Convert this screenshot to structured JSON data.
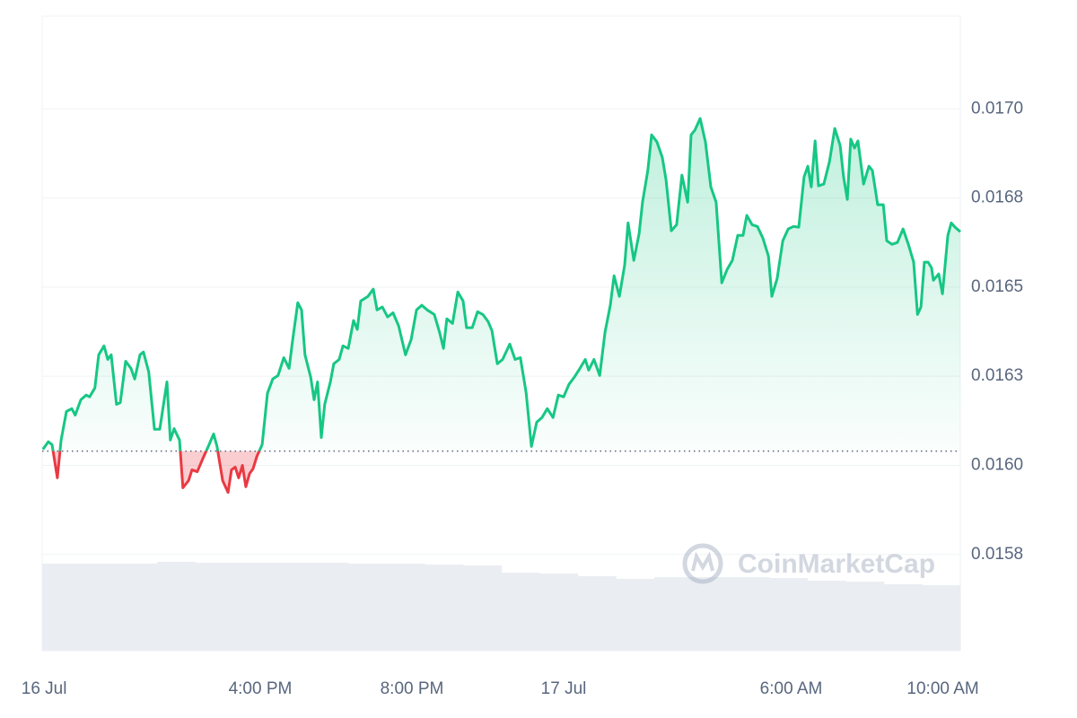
{
  "chart_data": {
    "type": "line",
    "watermark": "CoinMarketCap",
    "baseline": 0.01604,
    "color_up": "#16c784",
    "color_down": "#ea3943",
    "x": [
      10.27,
      10.41,
      10.51,
      10.65,
      10.75,
      10.89,
      11.03,
      11.12,
      11.27,
      11.41,
      11.5,
      11.64,
      11.74,
      11.88,
      11.98,
      12.07,
      12.21,
      12.31,
      12.45,
      12.59,
      12.69,
      12.83,
      12.92,
      13.06,
      13.21,
      13.35,
      13.54,
      13.63,
      13.73,
      13.87,
      13.96,
      14.11,
      14.2,
      14.34,
      14.49,
      14.63,
      14.77,
      14.86,
      15.01,
      15.15,
      15.24,
      15.34,
      15.43,
      15.53,
      15.62,
      15.72,
      15.81,
      15.91,
      16.05,
      16.19,
      16.33,
      16.47,
      16.62,
      16.76,
      16.85,
      16.99,
      17.09,
      17.18,
      17.33,
      17.42,
      17.51,
      17.61,
      17.7,
      17.85,
      17.94,
      18.08,
      18.18,
      18.32,
      18.46,
      18.56,
      18.65,
      18.84,
      18.98,
      19.08,
      19.22,
      19.36,
      19.5,
      19.65,
      19.83,
      19.98,
      20.12,
      20.26,
      20.4,
      20.59,
      20.73,
      20.83,
      20.92,
      21.07,
      21.21,
      21.35,
      21.44,
      21.59,
      21.73,
      21.87,
      22.01,
      22.11,
      22.25,
      22.39,
      22.58,
      22.72,
      22.86,
      23.01,
      23.15,
      23.29,
      23.43,
      23.57,
      23.72,
      23.86,
      24.0,
      24.14,
      24.28,
      24.43,
      24.57,
      24.66,
      24.8,
      24.95,
      25.09,
      25.23,
      25.33,
      25.47,
      25.61,
      25.7,
      25.85,
      25.99,
      26.08,
      26.22,
      26.32,
      26.46,
      26.6,
      26.7,
      26.84,
      26.98,
      27.12,
      27.27,
      27.36,
      27.46,
      27.6,
      27.74,
      27.88,
      28.02,
      28.17,
      28.31,
      28.45,
      28.59,
      28.73,
      28.83,
      28.97,
      29.11,
      29.25,
      29.4,
      29.49,
      29.63,
      29.78,
      29.92,
      30.06,
      30.2,
      30.34,
      30.44,
      30.53,
      30.63,
      30.72,
      30.86,
      31.01,
      31.15,
      31.29,
      31.38,
      31.48,
      31.57,
      31.67,
      31.76,
      31.91,
      32.05,
      32.14,
      32.28,
      32.43,
      32.52,
      32.66,
      32.8,
      32.95,
      33.09,
      33.23,
      33.33,
      33.42,
      33.51,
      33.61,
      33.7,
      33.75,
      33.89,
      33.99,
      34.13,
      34.22,
      34.32,
      34.46
    ],
    "series": [
      {
        "values": [
          0.016045,
          0.016066,
          0.016058,
          0.015965,
          0.016071,
          0.016151,
          0.016159,
          0.016141,
          0.016184,
          0.016197,
          0.016192,
          0.016217,
          0.01631,
          0.016335,
          0.016297,
          0.01631,
          0.016171,
          0.016176,
          0.016292,
          0.016272,
          0.016242,
          0.01631,
          0.016318,
          0.016262,
          0.016101,
          0.016101,
          0.016234,
          0.016071,
          0.016103,
          0.016071,
          0.015937,
          0.015957,
          0.015987,
          0.015982,
          0.01602,
          0.016053,
          0.016088,
          0.016053,
          0.015957,
          0.015924,
          0.015987,
          0.015995,
          0.015965,
          0.016,
          0.01594,
          0.015977,
          0.01599,
          0.016025,
          0.016058,
          0.016202,
          0.016242,
          0.016252,
          0.016302,
          0.016272,
          0.016348,
          0.016456,
          0.016436,
          0.01631,
          0.016247,
          0.016184,
          0.016234,
          0.016078,
          0.016171,
          0.016234,
          0.016285,
          0.016297,
          0.016335,
          0.016328,
          0.016406,
          0.016381,
          0.016461,
          0.016474,
          0.016494,
          0.016436,
          0.016444,
          0.016416,
          0.016428,
          0.016391,
          0.01631,
          0.016353,
          0.016436,
          0.016449,
          0.016436,
          0.016423,
          0.016373,
          0.016328,
          0.016411,
          0.016398,
          0.016486,
          0.016461,
          0.016386,
          0.016386,
          0.016431,
          0.016423,
          0.016403,
          0.016378,
          0.016285,
          0.016297,
          0.01634,
          0.016297,
          0.016302,
          0.016204,
          0.016053,
          0.016121,
          0.016134,
          0.016159,
          0.016134,
          0.016197,
          0.016192,
          0.016227,
          0.016247,
          0.016272,
          0.016297,
          0.016267,
          0.016297,
          0.016252,
          0.016373,
          0.016449,
          0.016532,
          0.016474,
          0.016562,
          0.01668,
          0.016575,
          0.01665,
          0.016738,
          0.016827,
          0.016927,
          0.016907,
          0.016864,
          0.016801,
          0.016658,
          0.016675,
          0.016814,
          0.016738,
          0.016927,
          0.01694,
          0.016973,
          0.016907,
          0.016781,
          0.016738,
          0.016512,
          0.016549,
          0.016575,
          0.016645,
          0.016645,
          0.016701,
          0.016675,
          0.01667,
          0.016638,
          0.016587,
          0.016474,
          0.016524,
          0.01663,
          0.016663,
          0.01667,
          0.016668,
          0.016809,
          0.016839,
          0.016781,
          0.01691,
          0.016784,
          0.016789,
          0.016852,
          0.016945,
          0.016897,
          0.016809,
          0.016746,
          0.016915,
          0.01689,
          0.01691,
          0.016789,
          0.016839,
          0.016827,
          0.016731,
          0.016731,
          0.01663,
          0.01662,
          0.016625,
          0.016663,
          0.01662,
          0.01657,
          0.016423,
          0.016444,
          0.01657,
          0.01657,
          0.016554,
          0.016519,
          0.016537,
          0.016481,
          0.016645,
          0.01668,
          0.016668,
          0.016655
        ]
      }
    ],
    "volume": {
      "color": "#eaeef2",
      "values": [
        97,
        97,
        97,
        99,
        98,
        98,
        98,
        98,
        97,
        97,
        96,
        95,
        87,
        86,
        83,
        80,
        82,
        82,
        82,
        81,
        78,
        77,
        74,
        73
      ]
    },
    "xlim": [
      10.25,
      34.46
    ],
    "xticks": [
      {
        "value": 10.3,
        "label": "16 Jul"
      },
      {
        "value": 16,
        "label": "4:00 PM"
      },
      {
        "value": 20,
        "label": "8:00 PM"
      },
      {
        "value": 24,
        "label": "17 Jul"
      },
      {
        "value": 30,
        "label": "6:00 AM"
      },
      {
        "value": 34,
        "label": "10:00 AM"
      }
    ],
    "ylim": [
      0.01548,
      0.01726
    ],
    "yticks": [
      {
        "value": 0.017,
        "label": "0.0170"
      },
      {
        "value": 0.01675,
        "label": "0.0168"
      },
      {
        "value": 0.0165,
        "label": "0.0165"
      },
      {
        "value": 0.01625,
        "label": "0.0163"
      },
      {
        "value": 0.016,
        "label": "0.0160"
      },
      {
        "value": 0.01575,
        "label": "0.0158"
      }
    ],
    "grid": true
  }
}
